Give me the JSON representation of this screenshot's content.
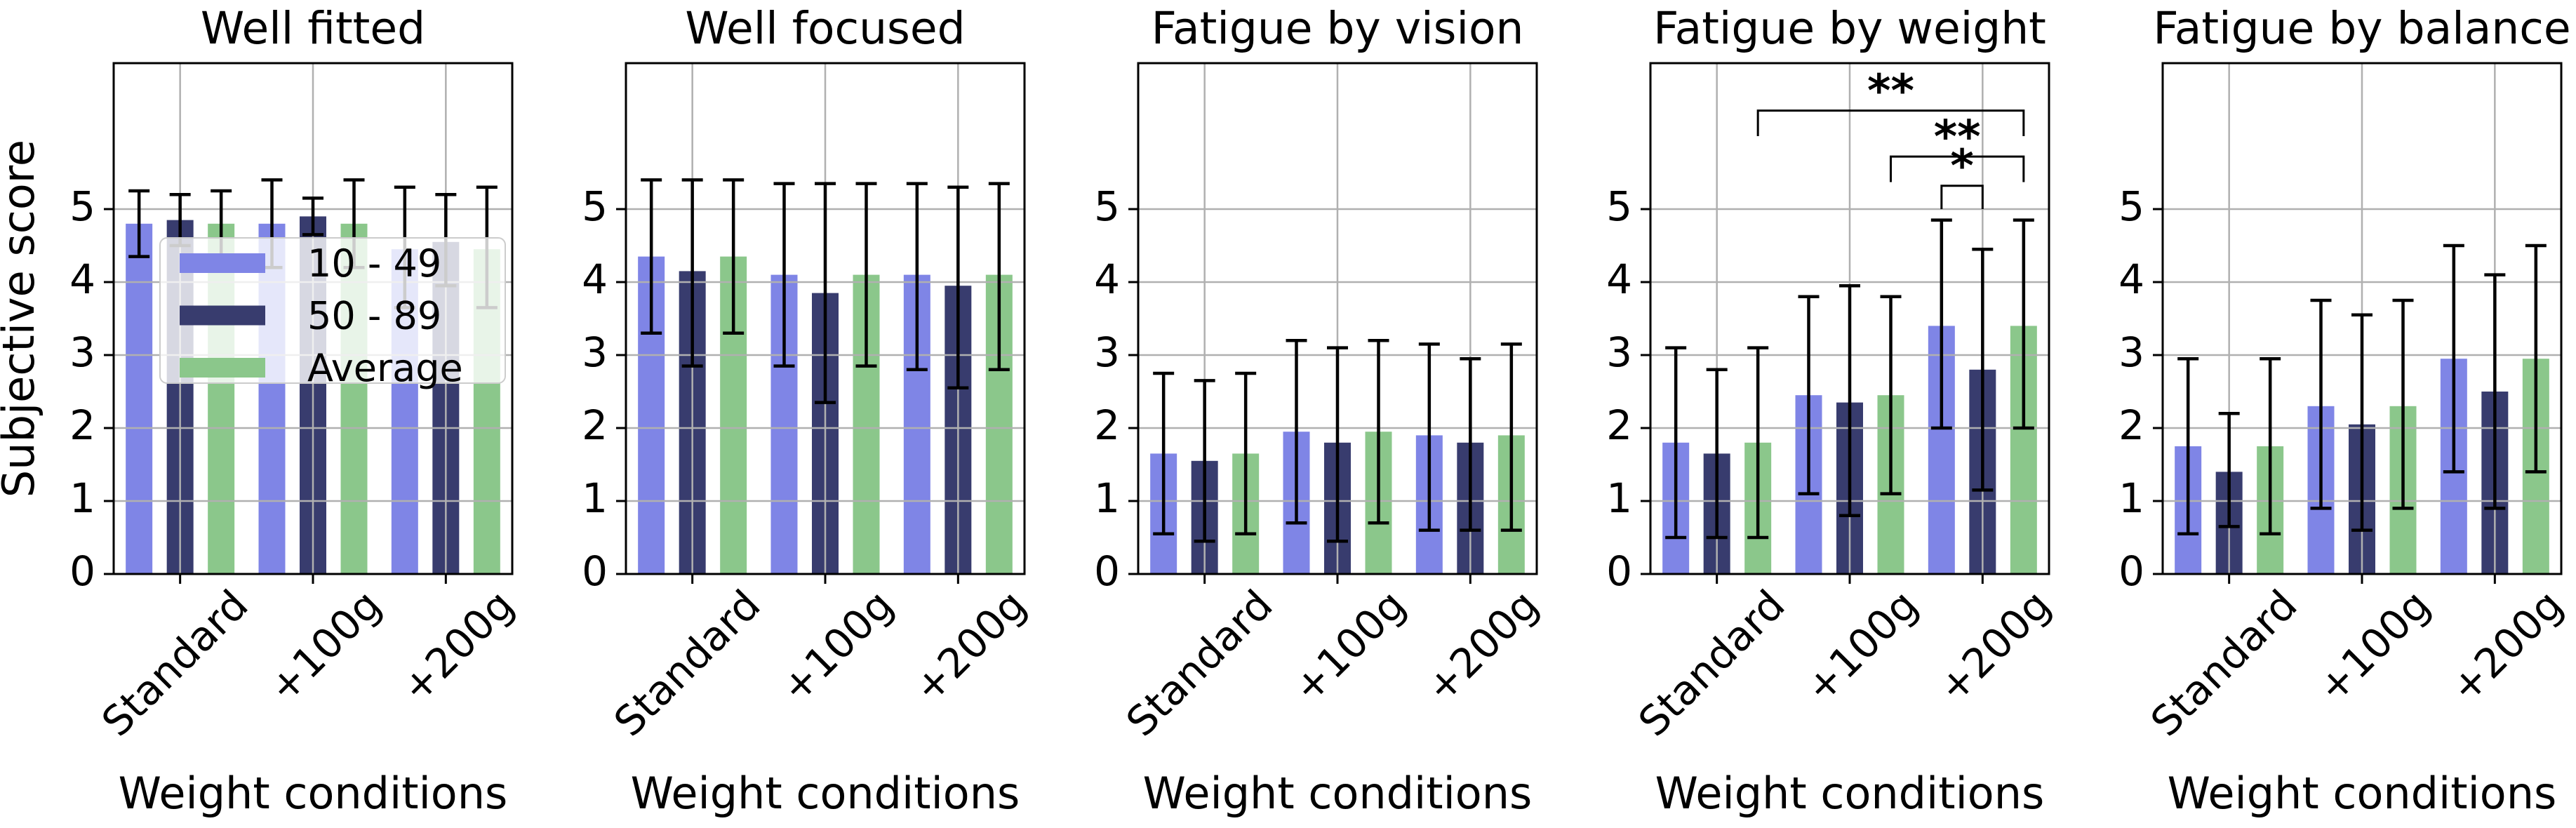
{
  "figure": {
    "background": "#ffffff",
    "grid_color": "#b0b0b0",
    "axis_color": "#000000",
    "errorbar_color": "#000000",
    "shared_ylabel": "Subjective score",
    "shared_xlabel": "Weight conditions",
    "categories": [
      "Standard",
      "+100g",
      "+200g"
    ],
    "legend": {
      "items": [
        {
          "label": "10 - 49",
          "color": "#7f85e6"
        },
        {
          "label": "50 - 89",
          "color": "#383c6e"
        },
        {
          "label": "Average",
          "color": "#8bc78b"
        }
      ]
    }
  },
  "chart_data": [
    {
      "type": "bar",
      "title": "Well fitted",
      "xlabel": "Weight conditions",
      "ylabel": "Subjective score",
      "categories": [
        "Standard",
        "+100g",
        "+200g"
      ],
      "ylim": [
        0,
        7
      ],
      "yticks": [
        "0",
        "1",
        "2",
        "3",
        "4",
        "5"
      ],
      "grid": true,
      "legend_position": "lower left",
      "series": [
        {
          "name": "10 - 49",
          "color": "#7f85e6",
          "values": [
            4.8,
            4.8,
            4.45
          ],
          "err_low": [
            4.35,
            4.2,
            3.65
          ],
          "err_high": [
            5.25,
            5.4,
            5.3
          ]
        },
        {
          "name": "50 - 89",
          "color": "#383c6e",
          "values": [
            4.85,
            4.9,
            4.55
          ],
          "err_low": [
            4.5,
            4.65,
            3.95
          ],
          "err_high": [
            5.2,
            5.15,
            5.2
          ]
        },
        {
          "name": "Average",
          "color": "#8bc78b",
          "values": [
            4.8,
            4.8,
            4.45
          ],
          "err_low": [
            4.35,
            4.2,
            3.65
          ],
          "err_high": [
            5.25,
            5.4,
            5.3
          ]
        }
      ]
    },
    {
      "type": "bar",
      "title": "Well focused",
      "xlabel": "Weight conditions",
      "ylabel": "",
      "categories": [
        "Standard",
        "+100g",
        "+200g"
      ],
      "ylim": [
        0,
        7
      ],
      "yticks": [
        "0",
        "1",
        "2",
        "3",
        "4",
        "5"
      ],
      "grid": true,
      "series": [
        {
          "name": "10 - 49",
          "color": "#7f85e6",
          "values": [
            4.35,
            4.1,
            4.1
          ],
          "err_low": [
            3.3,
            2.85,
            2.8
          ],
          "err_high": [
            5.4,
            5.35,
            5.35
          ]
        },
        {
          "name": "50 - 89",
          "color": "#383c6e",
          "values": [
            4.15,
            3.85,
            3.95
          ],
          "err_low": [
            2.85,
            2.35,
            2.55
          ],
          "err_high": [
            5.4,
            5.35,
            5.3
          ]
        },
        {
          "name": "Average",
          "color": "#8bc78b",
          "values": [
            4.35,
            4.1,
            4.1
          ],
          "err_low": [
            3.3,
            2.85,
            2.8
          ],
          "err_high": [
            5.4,
            5.35,
            5.35
          ]
        }
      ]
    },
    {
      "type": "bar",
      "title": "Fatigue by vision",
      "xlabel": "Weight conditions",
      "ylabel": "",
      "categories": [
        "Standard",
        "+100g",
        "+200g"
      ],
      "ylim": [
        0,
        7
      ],
      "yticks": [
        "0",
        "1",
        "2",
        "3",
        "4",
        "5"
      ],
      "grid": true,
      "series": [
        {
          "name": "10 - 49",
          "color": "#7f85e6",
          "values": [
            1.65,
            1.95,
            1.9
          ],
          "err_low": [
            0.55,
            0.7,
            0.6
          ],
          "err_high": [
            2.75,
            3.2,
            3.15
          ]
        },
        {
          "name": "50 - 89",
          "color": "#383c6e",
          "values": [
            1.55,
            1.8,
            1.8
          ],
          "err_low": [
            0.45,
            0.45,
            0.6
          ],
          "err_high": [
            2.65,
            3.1,
            2.95
          ]
        },
        {
          "name": "Average",
          "color": "#8bc78b",
          "values": [
            1.65,
            1.95,
            1.9
          ],
          "err_low": [
            0.55,
            0.7,
            0.6
          ],
          "err_high": [
            2.75,
            3.2,
            3.15
          ]
        }
      ]
    },
    {
      "type": "bar",
      "title": "Fatigue by weight",
      "xlabel": "Weight conditions",
      "ylabel": "",
      "categories": [
        "Standard",
        "+100g",
        "+200g"
      ],
      "ylim": [
        0,
        7
      ],
      "yticks": [
        "0",
        "1",
        "2",
        "3",
        "4",
        "5"
      ],
      "grid": true,
      "series": [
        {
          "name": "10 - 49",
          "color": "#7f85e6",
          "values": [
            1.8,
            2.45,
            3.4
          ],
          "err_low": [
            0.5,
            1.1,
            2.0
          ],
          "err_high": [
            3.1,
            3.8,
            4.85
          ]
        },
        {
          "name": "50 - 89",
          "color": "#383c6e",
          "values": [
            1.65,
            2.35,
            2.8
          ],
          "err_low": [
            0.5,
            0.8,
            1.15
          ],
          "err_high": [
            2.8,
            3.95,
            4.45
          ]
        },
        {
          "name": "Average",
          "color": "#8bc78b",
          "values": [
            1.8,
            2.45,
            3.4
          ],
          "err_low": [
            0.5,
            1.1,
            2.0
          ],
          "err_high": [
            3.1,
            3.8,
            4.85
          ]
        }
      ],
      "significance": [
        {
          "label": "**",
          "x1": {
            "category": 0,
            "series": 2
          },
          "x2": {
            "category": 2,
            "series": 2
          },
          "bar_y": 6.35,
          "tip_y": 6.0
        },
        {
          "label": "**",
          "x1": {
            "category": 1,
            "series": 2
          },
          "x2": {
            "category": 2,
            "series": 2
          },
          "bar_y": 5.72,
          "tip_y": 5.37
        },
        {
          "label": "*",
          "x1": {
            "category": 2,
            "series": 0
          },
          "x2": {
            "category": 2,
            "series": 1
          },
          "bar_y": 5.32,
          "tip_y": 5.0
        }
      ]
    },
    {
      "type": "bar",
      "title": "Fatigue by balance",
      "xlabel": "Weight conditions",
      "ylabel": "",
      "categories": [
        "Standard",
        "+100g",
        "+200g"
      ],
      "ylim": [
        0,
        7
      ],
      "yticks": [
        "0",
        "1",
        "2",
        "3",
        "4",
        "5"
      ],
      "grid": true,
      "series": [
        {
          "name": "10 - 49",
          "color": "#7f85e6",
          "values": [
            1.75,
            2.3,
            2.95
          ],
          "err_low": [
            0.55,
            0.9,
            1.4
          ],
          "err_high": [
            2.95,
            3.75,
            4.5
          ]
        },
        {
          "name": "50 - 89",
          "color": "#383c6e",
          "values": [
            1.4,
            2.05,
            2.5
          ],
          "err_low": [
            0.65,
            0.6,
            0.9
          ],
          "err_high": [
            2.2,
            3.55,
            4.1
          ]
        },
        {
          "name": "Average",
          "color": "#8bc78b",
          "values": [
            1.75,
            2.3,
            2.95
          ],
          "err_low": [
            0.55,
            0.9,
            1.4
          ],
          "err_high": [
            2.95,
            3.75,
            4.5
          ]
        }
      ]
    }
  ]
}
